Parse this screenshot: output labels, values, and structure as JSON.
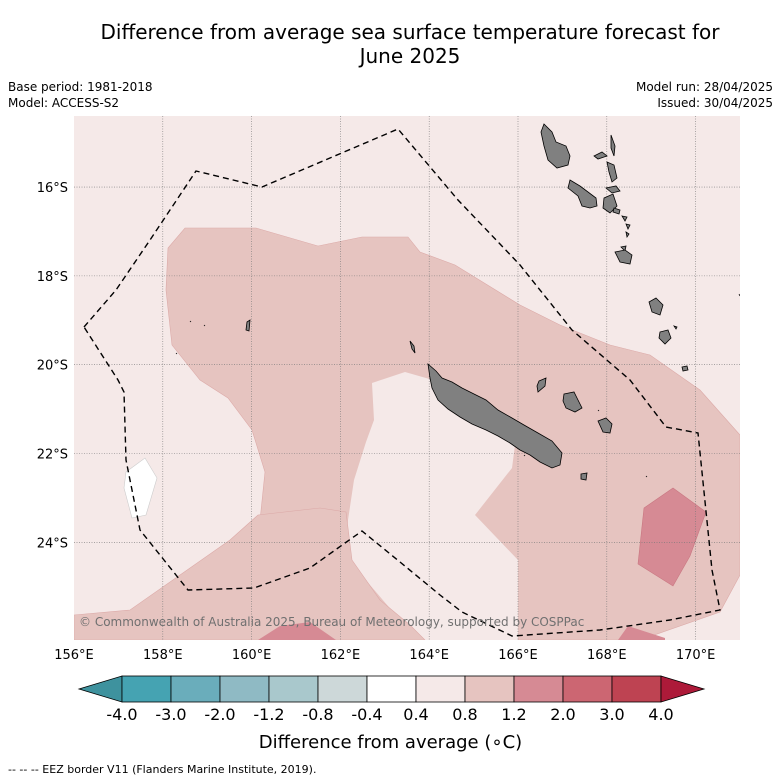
{
  "header": {
    "title_line1": "Difference from average sea surface temperature forecast for",
    "title_line2": "June 2025",
    "base_period": "Base period: 1981-2018",
    "model": "Model: ACCESS-S2",
    "model_run": "Model run: 28/04/2025",
    "issued": "Issued: 30/04/2025"
  },
  "map": {
    "lon_range": [
      156,
      171
    ],
    "lat_range": [
      -26.2,
      -14.4
    ],
    "lon_ticks": [
      "156°E",
      "158°E",
      "160°E",
      "162°E",
      "164°E",
      "166°E",
      "168°E",
      "170°E"
    ],
    "lat_ticks": [
      "16°S",
      "18°S",
      "20°S",
      "22°S",
      "24°S"
    ],
    "credit": "© Commonwealth of Australia 2025, Bureau of Meteorology, supported by COSPPac",
    "colors": {
      "ocean_0_4_0_8": "#f5e9e8",
      "anom_0_8_1_2": "#e6c4c0",
      "anom_1_2_2_0": "#d68a94",
      "anom_neutral": "#ffffff",
      "land": "#808080"
    }
  },
  "colorbar": {
    "title": "Difference from average (∘C)",
    "labels": [
      "-4.0",
      "-3.0",
      "-2.0",
      "-1.2",
      "-0.8",
      "-0.4",
      "0.4",
      "0.8",
      "1.2",
      "2.0",
      "3.0",
      "4.0"
    ],
    "colors": [
      "#3e929e",
      "#45a3b2",
      "#6aadbb",
      "#8fbac4",
      "#a9c8cc",
      "#cdd8d9",
      "#ffffff",
      "#f5e9e8",
      "#e6c4c0",
      "#d68a94",
      "#cc6672",
      "#be4352",
      "#ad1a39"
    ]
  },
  "footnote": "--  --  -- EEZ border V11 (Flanders Marine Institute, 2019)."
}
